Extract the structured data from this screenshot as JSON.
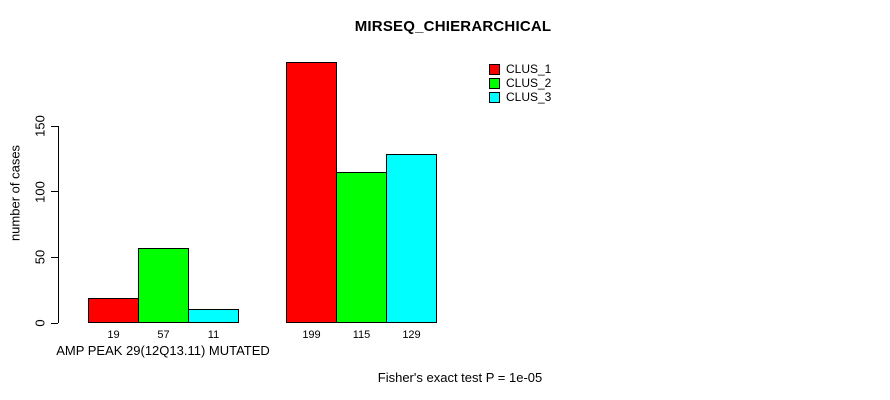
{
  "chart_data": {
    "type": "bar",
    "title": "MIRSEQ_CHIERARCHICAL",
    "ylabel": "number of cases",
    "footnote": "Fisher's exact test P = 1e-05",
    "ylim": [
      0,
      150
    ],
    "yticks": [
      0,
      50,
      100,
      150
    ],
    "grid": false,
    "legend_position": "top-right",
    "legend": [
      {
        "label": "CLUS_1",
        "color": "#ff0000"
      },
      {
        "label": "CLUS_2",
        "color": "#00ff00"
      },
      {
        "label": "CLUS_3",
        "color": "#00ffff"
      }
    ],
    "groups": [
      {
        "label": "AMP PEAK 29(12Q13.11) MUTATED",
        "bars": [
          {
            "cluster": "CLUS_1",
            "value": 19
          },
          {
            "cluster": "CLUS_2",
            "value": 57
          },
          {
            "cluster": "CLUS_3",
            "value": 11
          }
        ]
      },
      {
        "label": "",
        "bars": [
          {
            "cluster": "CLUS_1",
            "value": 199
          },
          {
            "cluster": "CLUS_2",
            "value": 115
          },
          {
            "cluster": "CLUS_3",
            "value": 129
          }
        ]
      }
    ]
  }
}
